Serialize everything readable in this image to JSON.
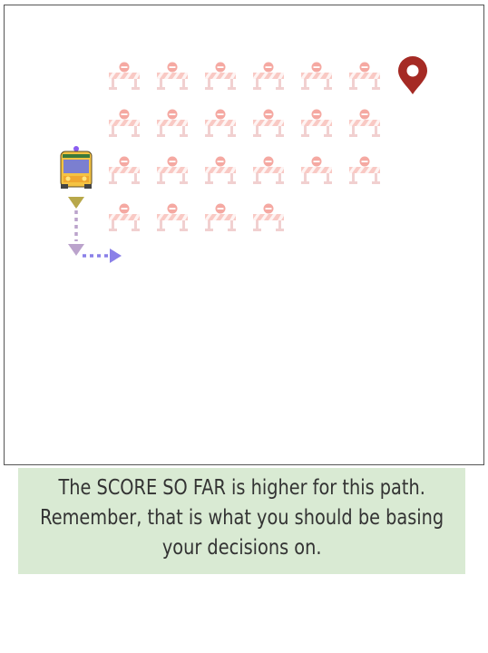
{
  "game": {
    "barrier_rows": [
      6,
      6,
      6,
      4
    ],
    "colors": {
      "barrier": "#f4c2c2",
      "barrier_accent": "#f8a7a0",
      "destination_pin": "#a52a24",
      "bus_body": "#f5c342",
      "bus_window": "#7b7fd0",
      "path_down": "#bba3cc",
      "path_right": "#8a80e8",
      "arrow_down_first": "#b8a84a",
      "siren": "#8a5cf0"
    },
    "icons": {
      "vehicle": "bus-icon",
      "destination": "map-pin-icon",
      "obstacle": "road-barrier-icon"
    },
    "path": [
      "down",
      "down",
      "right"
    ]
  },
  "feedback": {
    "message": "The SCORE SO FAR is higher for this path. Remember, that is what you should be basing your decisions on."
  }
}
